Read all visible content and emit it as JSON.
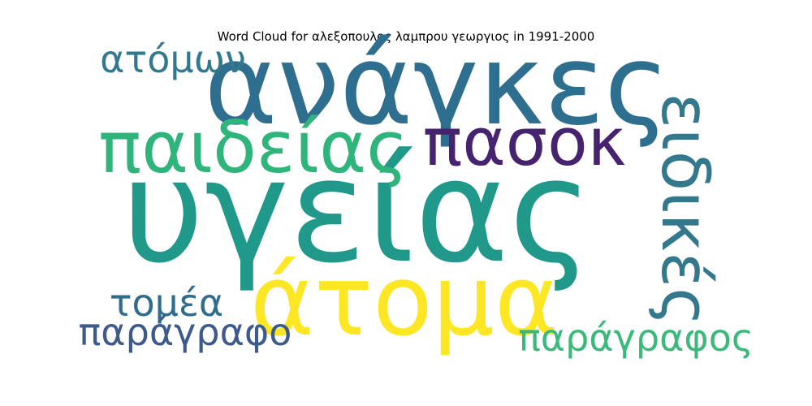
{
  "chart_data": {
    "type": "wordcloud",
    "title": "Word Cloud for αλεξοπουλος λαμπρου γεωργιος in 1991-2000",
    "words": [
      {
        "text": "υγείας",
        "weight": 1.0,
        "color": "#21998a",
        "orientation": "horizontal"
      },
      {
        "text": "ανάγκες",
        "weight": 0.78,
        "color": "#2e6e8e",
        "orientation": "horizontal"
      },
      {
        "text": "άτομα",
        "weight": 0.68,
        "color": "#fde725",
        "orientation": "horizontal"
      },
      {
        "text": "παιδείας",
        "weight": 0.5,
        "color": "#2fb47c",
        "orientation": "horizontal"
      },
      {
        "text": "ειδικές",
        "weight": 0.46,
        "color": "#33788d",
        "orientation": "vertical"
      },
      {
        "text": "πασοκ",
        "weight": 0.46,
        "color": "#46236e",
        "orientation": "horizontal"
      },
      {
        "text": "ατόμων",
        "weight": 0.26,
        "color": "#33798d",
        "orientation": "horizontal"
      },
      {
        "text": "τομέα",
        "weight": 0.26,
        "color": "#2f6d8e",
        "orientation": "horizontal"
      },
      {
        "text": "παράγραφο",
        "weight": 0.26,
        "color": "#3c5a8c",
        "orientation": "horizontal"
      },
      {
        "text": "παράγραφος",
        "weight": 0.26,
        "color": "#3bb97a",
        "orientation": "horizontal"
      }
    ]
  }
}
